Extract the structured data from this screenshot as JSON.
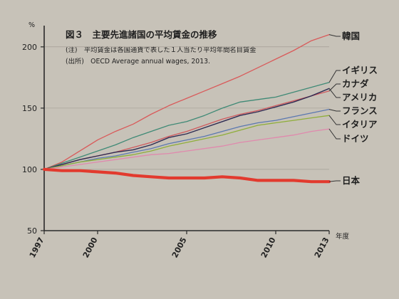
{
  "chart_data": {
    "type": "line",
    "title": "図３　主要先進諸国の平均賃金の推移",
    "notes": [
      "(注)　平均賃金は各国通貨で表した１人当たり平均年間名目賃金",
      "(出所)　OECD Average annual wages, 2013."
    ],
    "y_unit": "%",
    "xlabel": "年度",
    "ylim": [
      50,
      215
    ],
    "xlim": [
      1997,
      2013
    ],
    "yticks": [
      50,
      100,
      150,
      200
    ],
    "ytick_labels": [
      "50",
      "100",
      "150",
      "200"
    ],
    "xticks": [
      1997,
      2000,
      2005,
      2010,
      2013
    ],
    "xtick_labels": [
      "1997",
      "2000",
      "2005",
      "2010",
      "2013"
    ],
    "grid": true,
    "legend": "labels at line ends (right)",
    "x": [
      1997,
      1998,
      1999,
      2000,
      2001,
      2002,
      2003,
      2004,
      2005,
      2006,
      2007,
      2008,
      2009,
      2010,
      2011,
      2012,
      2013
    ],
    "series": [
      {
        "name": "韓国",
        "color": "#d95a5a",
        "width": 1.3,
        "values": [
          100,
          106,
          115,
          124,
          131,
          137,
          145,
          152,
          158,
          164,
          170,
          176,
          183,
          190,
          197,
          205,
          210
        ]
      },
      {
        "name": "イギリス",
        "color": "#3f8a76",
        "width": 1.3,
        "values": [
          100,
          105,
          110,
          115,
          120,
          126,
          131,
          136,
          139,
          144,
          150,
          155,
          157,
          159,
          163,
          167,
          171
        ]
      },
      {
        "name": "カナダ",
        "color": "#cf5a5e",
        "width": 1.3,
        "values": [
          100,
          104,
          108,
          111,
          114,
          118,
          122,
          127,
          131,
          136,
          141,
          145,
          148,
          152,
          156,
          160,
          164
        ]
      },
      {
        "name": "アメリカ",
        "color": "#2e2a52",
        "width": 1.4,
        "values": [
          100,
          104,
          108,
          111,
          114,
          116,
          120,
          126,
          129,
          134,
          139,
          144,
          147,
          151,
          155,
          160,
          166
        ]
      },
      {
        "name": "フランス",
        "color": "#5b78b0",
        "width": 1.3,
        "values": [
          100,
          103,
          106,
          109,
          111,
          114,
          117,
          121,
          124,
          127,
          131,
          135,
          138,
          140,
          143,
          146,
          149
        ]
      },
      {
        "name": "イタリア",
        "color": "#8fae3a",
        "width": 1.3,
        "values": [
          100,
          103,
          106,
          108,
          110,
          112,
          115,
          119,
          122,
          125,
          128,
          132,
          136,
          138,
          140,
          142,
          144
        ]
      },
      {
        "name": "ドイツ",
        "color": "#e089ad",
        "width": 1.3,
        "values": [
          100,
          102,
          104,
          106,
          108,
          110,
          112,
          113,
          115,
          117,
          119,
          122,
          124,
          126,
          128,
          131,
          133
        ]
      },
      {
        "name": "日本",
        "color": "#e23a2e",
        "width": 4.2,
        "values": [
          100,
          99,
          99,
          98,
          97,
          95,
          94,
          93,
          93,
          93,
          94,
          93,
          91,
          91,
          91,
          90,
          90
        ]
      }
    ]
  }
}
